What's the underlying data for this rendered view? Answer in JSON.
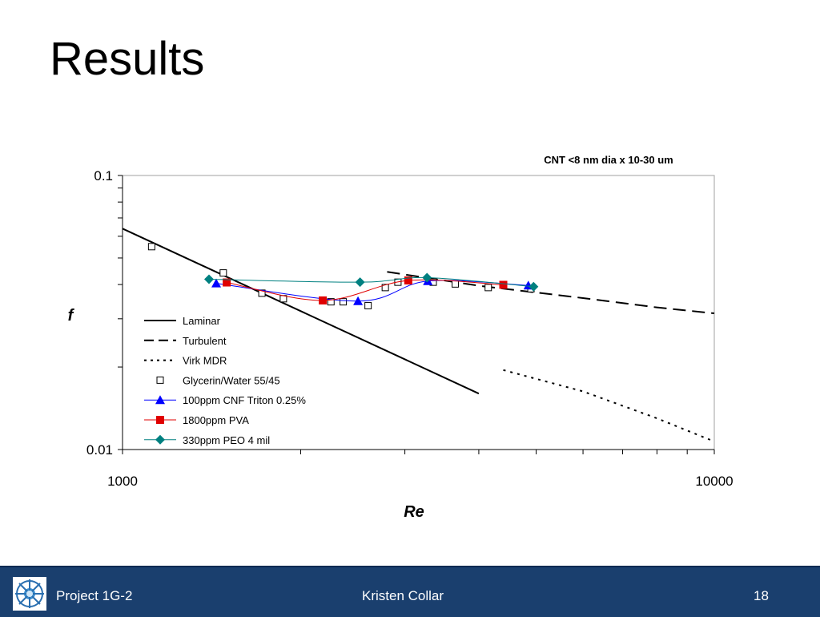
{
  "slide": {
    "title": "Results"
  },
  "footer": {
    "project": "Project 1G-2",
    "author": "Kristen Collar",
    "page_number": "18"
  },
  "colors": {
    "footer_bg": "#1a3f6e",
    "triton": "#0000ff",
    "pva": "#e00000",
    "peo": "#008080"
  },
  "chart_data": {
    "type": "line",
    "title": "CNT <8 nm dia x 10-30 um",
    "xlabel": "Re",
    "ylabel": "f",
    "x_scale": "log",
    "y_scale": "log",
    "xlim": [
      1000,
      10000
    ],
    "ylim": [
      0.01,
      0.1
    ],
    "x_tick_labels": [
      "1000",
      "10000"
    ],
    "y_tick_labels": [
      "0.1",
      "0.01"
    ],
    "grid": false,
    "legend_position": "lower-left inside",
    "series": [
      {
        "name": "Laminar",
        "style": "solid-line",
        "color": "#000000",
        "points": [
          [
            1000,
            0.064
          ],
          [
            4000,
            0.016
          ]
        ]
      },
      {
        "name": "Turbulent",
        "style": "dashed-line",
        "color": "#000000",
        "points": [
          [
            2800,
            0.0445
          ],
          [
            4000,
            0.0396
          ],
          [
            6000,
            0.0357
          ],
          [
            8000,
            0.033
          ],
          [
            10000,
            0.0314
          ]
        ]
      },
      {
        "name": "Virk MDR",
        "style": "dotted-line",
        "color": "#000000",
        "points": [
          [
            4400,
            0.0195
          ],
          [
            6000,
            0.0163
          ],
          [
            8000,
            0.013
          ],
          [
            10000,
            0.0107
          ]
        ]
      },
      {
        "name": "Glycerin/Water 55/45",
        "style": "open-square-markers",
        "color": "#000000",
        "points": [
          [
            1120,
            0.055
          ],
          [
            1480,
            0.0441
          ],
          [
            1720,
            0.0372
          ],
          [
            1870,
            0.0355
          ],
          [
            2250,
            0.0346
          ],
          [
            2360,
            0.0346
          ],
          [
            2600,
            0.0335
          ],
          [
            2780,
            0.039
          ],
          [
            2920,
            0.0408
          ],
          [
            3350,
            0.0408
          ],
          [
            3650,
            0.0402
          ],
          [
            4150,
            0.039
          ],
          [
            4900,
            0.0386
          ]
        ]
      },
      {
        "name": "100ppm CNF Triton 0.25%",
        "style": "line-triangle-markers",
        "color": "#0000ff",
        "points": [
          [
            1440,
            0.0404
          ],
          [
            2500,
            0.0348
          ],
          [
            3280,
            0.0412
          ],
          [
            4850,
            0.0397
          ]
        ]
      },
      {
        "name": "1800ppm PVA",
        "style": "line-square-markers",
        "color": "#e00000",
        "points": [
          [
            1500,
            0.0407
          ],
          [
            2180,
            0.035
          ],
          [
            3040,
            0.0414
          ],
          [
            4400,
            0.0399
          ]
        ]
      },
      {
        "name": "330ppm PEO 4 mil",
        "style": "line-diamond-markers",
        "color": "#008080",
        "points": [
          [
            1400,
            0.0418
          ],
          [
            2520,
            0.0408
          ],
          [
            3270,
            0.0424
          ],
          [
            4950,
            0.0393
          ]
        ]
      }
    ]
  }
}
